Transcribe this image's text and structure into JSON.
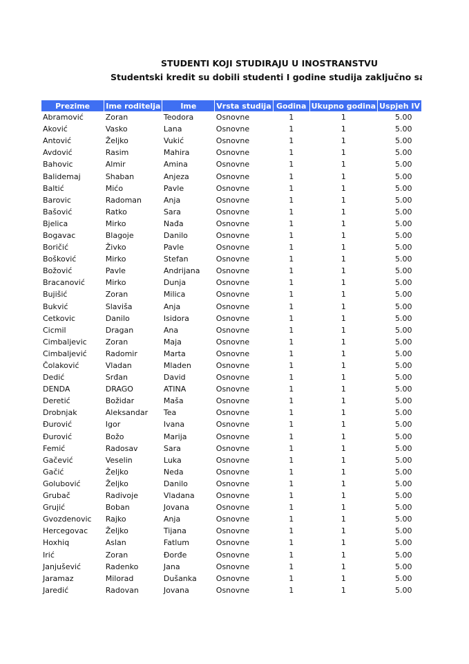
{
  "title": "STUDENTI KOJI STUDIRAJU U INOSTRANSTVU",
  "subtitle": "Studentski kredit su dobili studenti I godine studija  zaključno sa br",
  "columns": [
    "Prezime",
    "Ime roditelja",
    "Ime",
    "Vrsta studija",
    "Godina",
    "Ukupno godina",
    "Uspjeh IV"
  ],
  "colors": {
    "header_bg": "#3f6ff2",
    "header_text": "#ffffff"
  },
  "rows": [
    [
      "Abramović",
      "Zoran",
      "Teodora",
      "Osnovne",
      "1",
      "1",
      "5.00"
    ],
    [
      "Aković",
      "Vasko",
      "Lana",
      "Osnovne",
      "1",
      "1",
      "5.00"
    ],
    [
      "Antović",
      "Željko",
      "Vukić",
      "Osnovne",
      "1",
      "1",
      "5.00"
    ],
    [
      "Avdović",
      "Rasim",
      "Mahira",
      "Osnovne",
      "1",
      "1",
      "5.00"
    ],
    [
      "Bahovic",
      "Almir",
      "Amina",
      "Osnovne",
      "1",
      "1",
      "5.00"
    ],
    [
      "Balidemaj",
      "Shaban",
      "Anjeza",
      "Osnovne",
      "1",
      "1",
      "5.00"
    ],
    [
      "Baltić",
      "Mićo",
      "Pavle",
      "Osnovne",
      "1",
      "1",
      "5.00"
    ],
    [
      "Barovic",
      "Radoman",
      "Anja",
      "Osnovne",
      "1",
      "1",
      "5.00"
    ],
    [
      "Bašović",
      "Ratko",
      "Sara",
      "Osnovne",
      "1",
      "1",
      "5.00"
    ],
    [
      "Bjelica",
      "Mirko",
      "Nađa",
      "Osnovne",
      "1",
      "1",
      "5.00"
    ],
    [
      "Bogavac",
      "Blagoje",
      "Danilo",
      "Osnovne",
      "1",
      "1",
      "5.00"
    ],
    [
      "Boričić",
      "Živko",
      "Pavle",
      "Osnovne",
      "1",
      "1",
      "5.00"
    ],
    [
      "Bošković",
      "Mirko",
      "Stefan",
      "Osnovne",
      "1",
      "1",
      "5.00"
    ],
    [
      "Božović",
      "Pavle",
      "Andrijana",
      "Osnovne",
      "1",
      "1",
      "5.00"
    ],
    [
      "Bracanović",
      "Mirko",
      "Dunja",
      "Osnovne",
      "1",
      "1",
      "5.00"
    ],
    [
      "Bujišić",
      "Zoran",
      "Milica",
      "Osnovne",
      "1",
      "1",
      "5.00"
    ],
    [
      "Bukvić",
      "Slaviša",
      "Anja",
      "Osnovne",
      "1",
      "1",
      "5.00"
    ],
    [
      "Cetkovic",
      "Danilo",
      "Isidora",
      "Osnovne",
      "1",
      "1",
      "5.00"
    ],
    [
      "Cicmil",
      "Dragan",
      "Ana",
      "Osnovne",
      "1",
      "1",
      "5.00"
    ],
    [
      "Cimbaljevic",
      "Zoran",
      "Maja",
      "Osnovne",
      "1",
      "1",
      "5.00"
    ],
    [
      "Cimbaljević",
      "Radomir",
      "Marta",
      "Osnovne",
      "1",
      "1",
      "5.00"
    ],
    [
      "Čolaković",
      "Vladan",
      "Mladen",
      "Osnovne",
      "1",
      "1",
      "5.00"
    ],
    [
      "Dedić",
      "Srđan",
      "David",
      "Osnovne",
      "1",
      "1",
      "5.00"
    ],
    [
      "DENDA",
      "DRAGO",
      "ATINA",
      "Osnovne",
      "1",
      "1",
      "5.00"
    ],
    [
      "Deretić",
      "Božidar",
      "Maša",
      "Osnovne",
      "1",
      "1",
      "5.00"
    ],
    [
      "Drobnjak",
      "Aleksandar",
      "Tea",
      "Osnovne",
      "1",
      "1",
      "5.00"
    ],
    [
      "Đurović",
      "Igor",
      "Ivana",
      "Osnovne",
      "1",
      "1",
      "5.00"
    ],
    [
      "Đurović",
      "Božo",
      "Marija",
      "Osnovne",
      "1",
      "1",
      "5.00"
    ],
    [
      "Femić",
      "Radosav",
      "Sara",
      "Osnovne",
      "1",
      "1",
      "5.00"
    ],
    [
      "Gačević",
      "Veselin",
      "Luka",
      "Osnovne",
      "1",
      "1",
      "5.00"
    ],
    [
      "Gačić",
      "Željko",
      "Neda",
      "Osnovne",
      "1",
      "1",
      "5.00"
    ],
    [
      "Golubović",
      "Željko",
      "Danilo",
      "Osnovne",
      "1",
      "1",
      "5.00"
    ],
    [
      "Grubač",
      "Radivoje",
      "Vladana",
      "Osnovne",
      "1",
      "1",
      "5.00"
    ],
    [
      "Grujić",
      "Boban",
      "Jovana",
      "Osnovne",
      "1",
      "1",
      "5.00"
    ],
    [
      "Gvozdenovic",
      "Rajko",
      "Anja",
      "Osnovne",
      "1",
      "1",
      "5.00"
    ],
    [
      "Hercegovac",
      "Željko",
      "Tijana",
      "Osnovne",
      "1",
      "1",
      "5.00"
    ],
    [
      "Hoxhiq",
      "Aslan",
      "Fatlum",
      "Osnovne",
      "1",
      "1",
      "5.00"
    ],
    [
      "Irić",
      "Zoran",
      "Đorđe",
      "Osnovne",
      "1",
      "1",
      "5.00"
    ],
    [
      "Janjušević",
      "Radenko",
      "Jana",
      "Osnovne",
      "1",
      "1",
      "5.00"
    ],
    [
      "Jaramaz",
      "Milorad",
      "Dušanka",
      "Osnovne",
      "1",
      "1",
      "5.00"
    ],
    [
      "Jaredić",
      "Radovan",
      "Jovana",
      "Osnovne",
      "1",
      "1",
      "5.00"
    ]
  ]
}
